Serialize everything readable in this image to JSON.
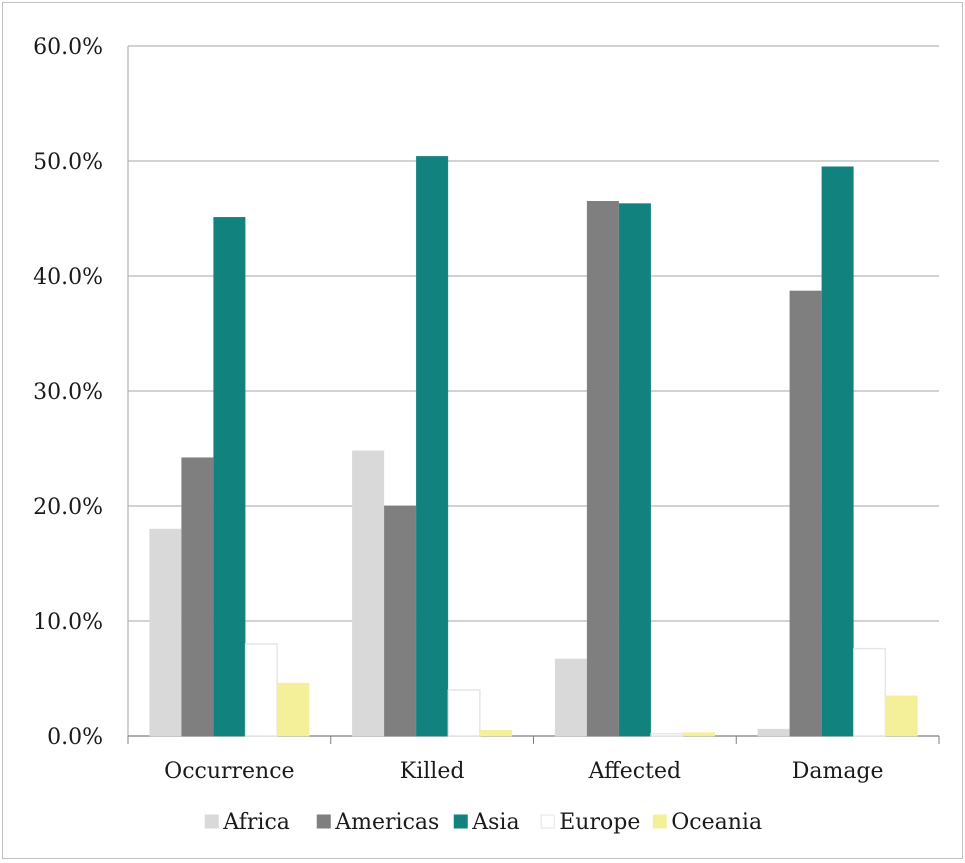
{
  "chart_data": {
    "type": "bar",
    "title": "",
    "xlabel": "",
    "ylabel": "",
    "categories": [
      "Occurrence",
      "Killed",
      "Affected",
      "Damage"
    ],
    "series": [
      {
        "name": "Africa",
        "color": "#d9d9d9",
        "values": [
          18.0,
          24.8,
          6.7,
          0.6
        ]
      },
      {
        "name": "Americas",
        "color": "#7f7f7f",
        "values": [
          24.2,
          20.0,
          46.5,
          38.7
        ]
      },
      {
        "name": "Asia",
        "color": "#12827e",
        "values": [
          45.1,
          50.4,
          46.3,
          49.5
        ]
      },
      {
        "name": "Europe",
        "color": "#ffffff",
        "values": [
          8.0,
          4.0,
          0.2,
          7.6
        ]
      },
      {
        "name": "Oceania",
        "color": "#f4f09a",
        "values": [
          4.6,
          0.5,
          0.3,
          3.5
        ]
      }
    ],
    "ylim": [
      0,
      60
    ],
    "yticks": [
      "0.0%",
      "10.0%",
      "20.0%",
      "30.0%",
      "40.0%",
      "50.0%",
      "60.0%"
    ],
    "grid": true,
    "legend_position": "bottom"
  }
}
